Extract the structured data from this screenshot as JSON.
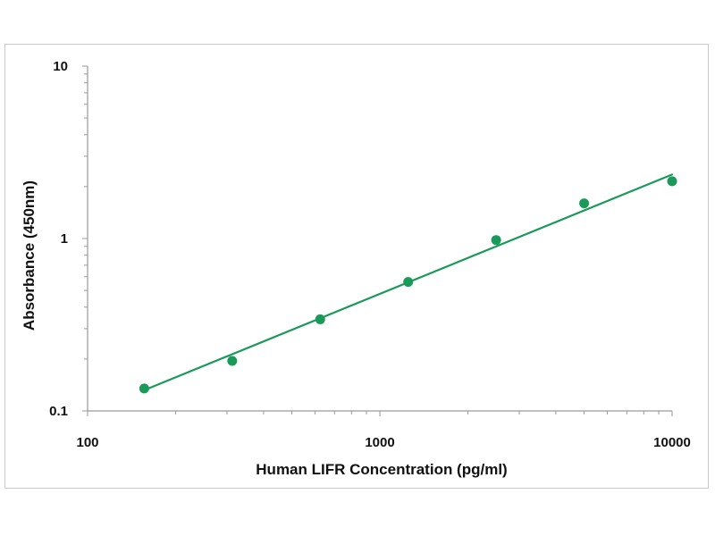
{
  "chart_data": {
    "type": "scatter",
    "title": "",
    "xlabel": "Human LIFR Concentration (pg/ml)",
    "ylabel": "Absorbance (450nm)",
    "x_scale": "log",
    "y_scale": "log",
    "xlim": [
      100,
      10000
    ],
    "ylim": [
      0.1,
      10
    ],
    "x_ticks": [
      {
        "value": 100,
        "label": "100"
      },
      {
        "value": 1000,
        "label": "1000"
      },
      {
        "value": 10000,
        "label": "10000"
      }
    ],
    "y_ticks": [
      {
        "value": 0.1,
        "label": "0.1"
      },
      {
        "value": 1,
        "label": "1"
      },
      {
        "value": 10,
        "label": "10"
      }
    ],
    "grid": false,
    "legend": "none",
    "series": [
      {
        "color": "#1a9a5a",
        "points": [
          {
            "x": 156.25,
            "y": 0.135
          },
          {
            "x": 312.5,
            "y": 0.195
          },
          {
            "x": 625,
            "y": 0.34
          },
          {
            "x": 1250,
            "y": 0.56
          },
          {
            "x": 2500,
            "y": 0.98
          },
          {
            "x": 5000,
            "y": 1.6
          },
          {
            "x": 10000,
            "y": 2.15
          }
        ],
        "fit_line": {
          "type": "power",
          "from": {
            "x": 156.25,
            "y": 0.132
          },
          "to": {
            "x": 10000,
            "y": 2.35
          }
        }
      }
    ]
  }
}
